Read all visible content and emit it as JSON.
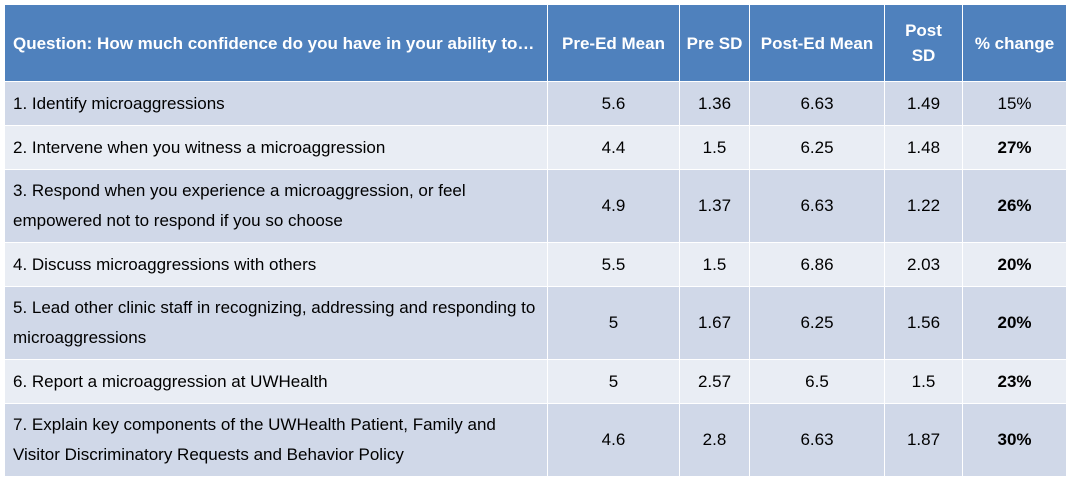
{
  "table": {
    "headers": {
      "question": "Question: How much confidence do you have in your ability to…",
      "pre_mean": "Pre-Ed Mean",
      "pre_sd": "Pre SD",
      "post_mean": "Post-Ed Mean",
      "post_sd": "Post SD",
      "pct_change": "% change"
    },
    "rows": [
      {
        "question": "1. Identify microaggressions",
        "pre_mean": "5.6",
        "pre_sd": "1.36",
        "post_mean": "6.63",
        "post_sd": "1.49",
        "pct_change": "15%",
        "pct_bold": false
      },
      {
        "question": "2. Intervene when you witness a microaggression",
        "pre_mean": "4.4",
        "pre_sd": "1.5",
        "post_mean": "6.25",
        "post_sd": "1.48",
        "pct_change": "27%",
        "pct_bold": true
      },
      {
        "question": "3. Respond when you experience a microaggression, or feel empowered not to respond if you so choose",
        "pre_mean": "4.9",
        "pre_sd": "1.37",
        "post_mean": "6.63",
        "post_sd": "1.22",
        "pct_change": "26%",
        "pct_bold": true
      },
      {
        "question": "4. Discuss microaggressions with others",
        "pre_mean": "5.5",
        "pre_sd": "1.5",
        "post_mean": "6.86",
        "post_sd": "2.03",
        "pct_change": "20%",
        "pct_bold": true
      },
      {
        "question": "5. Lead other clinic staff in recognizing, addressing and responding to microaggressions",
        "pre_mean": "5",
        "pre_sd": "1.67",
        "post_mean": "6.25",
        "post_sd": "1.56",
        "pct_change": "20%",
        "pct_bold": true
      },
      {
        "question": "6. Report a microaggression at UWHealth",
        "pre_mean": "5",
        "pre_sd": "2.57",
        "post_mean": "6.5",
        "post_sd": "1.5",
        "pct_change": "23%",
        "pct_bold": true
      },
      {
        "question": "7. Explain key components of the UWHealth Patient, Family and Visitor Discriminatory Requests and Behavior Policy",
        "pre_mean": "4.6",
        "pre_sd": "2.8",
        "post_mean": "6.63",
        "post_sd": "1.87",
        "pct_change": "30%",
        "pct_bold": true
      }
    ]
  },
  "colors": {
    "header_bg": "#4f81bd",
    "row_odd_bg": "#d0d8e8",
    "row_even_bg": "#e9edf4"
  }
}
